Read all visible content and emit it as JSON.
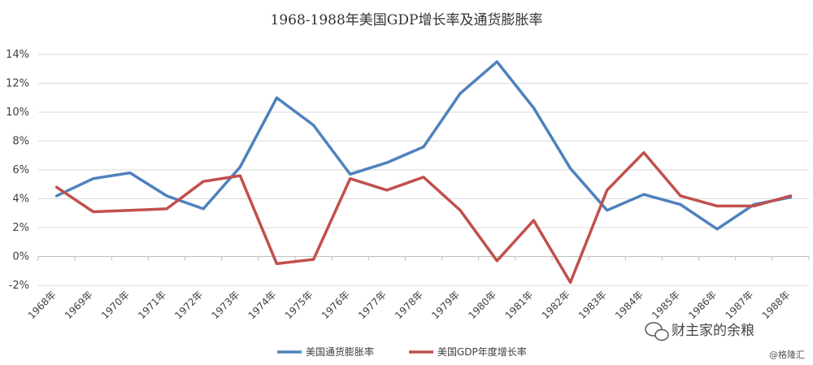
{
  "chart_data": {
    "type": "line",
    "title": "1968-1988年美国GDP增长率及通货膨胀率",
    "xlabel": "",
    "ylabel": "",
    "categories": [
      "1968年",
      "1969年",
      "1970年",
      "1971年",
      "1972年",
      "1973年",
      "1974年",
      "1975年",
      "1976年",
      "1977年",
      "1978年",
      "1979年",
      "1980年",
      "1981年",
      "1982年",
      "1983年",
      "1984年",
      "1985年",
      "1986年",
      "1987年",
      "1988年"
    ],
    "series": [
      {
        "name": "美国通货膨胀率",
        "color": "#4F81BD",
        "values": [
          4.2,
          5.4,
          5.8,
          4.2,
          3.3,
          6.2,
          11.0,
          9.1,
          5.7,
          6.5,
          7.6,
          11.3,
          13.5,
          10.3,
          6.1,
          3.2,
          4.3,
          3.6,
          1.9,
          3.6,
          4.1
        ]
      },
      {
        "name": "美国GDP年度增长率",
        "color": "#C0504D",
        "values": [
          4.8,
          3.1,
          3.2,
          3.3,
          5.2,
          5.6,
          -0.5,
          -0.2,
          5.4,
          4.6,
          5.5,
          3.2,
          -0.3,
          2.5,
          -1.8,
          4.6,
          7.2,
          4.2,
          3.5,
          3.5,
          4.2
        ]
      }
    ],
    "ylim": [
      -2,
      14
    ],
    "yticks": [
      "-2%",
      "0%",
      "2%",
      "4%",
      "6%",
      "8%",
      "10%",
      "12%",
      "14%"
    ],
    "ytick_values": [
      -2,
      0,
      2,
      4,
      6,
      8,
      10,
      12,
      14
    ],
    "grid": true,
    "legend": "bottom-center"
  },
  "watermark": {
    "main": "财主家的余粮",
    "sub": "@格隆汇"
  }
}
